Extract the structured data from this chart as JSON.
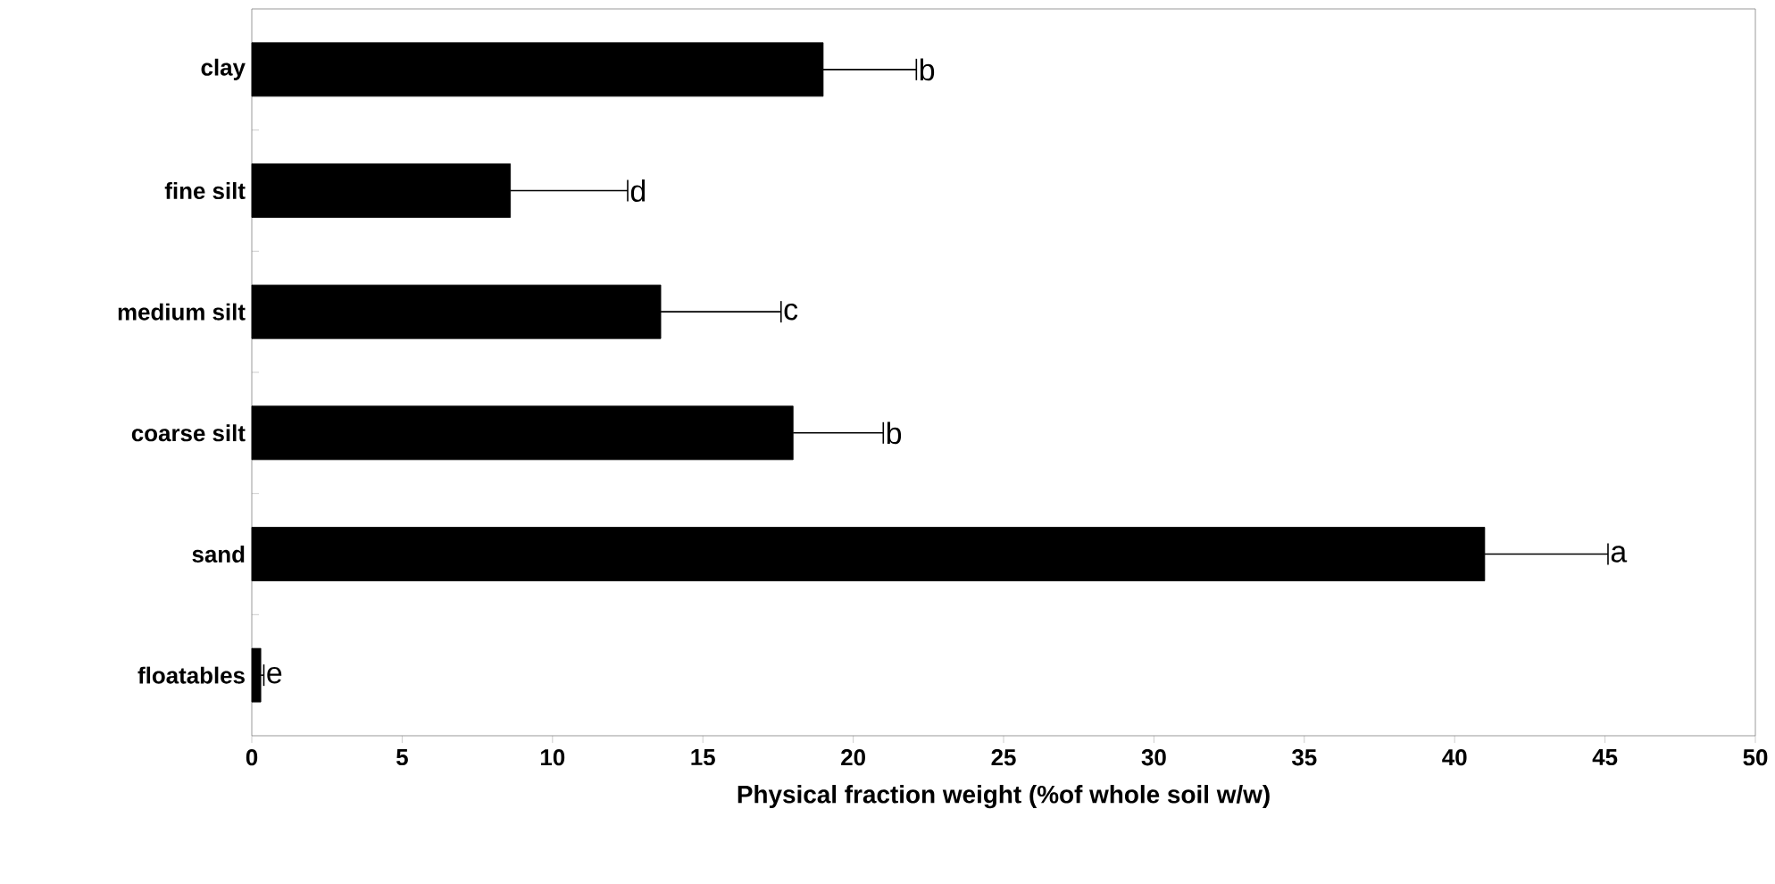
{
  "chart_data": {
    "type": "bar",
    "orientation": "horizontal",
    "xlabel": "Physical fraction weight (%of whole soil w/w)",
    "categories": [
      "clay",
      "fine silt",
      "medium silt",
      "coarse silt",
      "sand",
      "floatables"
    ],
    "values": [
      19.0,
      8.6,
      13.6,
      18.0,
      41.0,
      0.3
    ],
    "errors": [
      [
        19.0,
        22.1
      ],
      [
        8.6,
        12.5
      ],
      [
        13.6,
        17.6
      ],
      [
        18.0,
        21.0
      ],
      [
        41.0,
        45.1
      ],
      [
        0.3,
        0.4
      ]
    ],
    "color": "#000000",
    "xlim": [
      0,
      50
    ],
    "xticks": [
      0,
      5,
      10,
      15,
      20,
      25,
      30,
      35,
      40,
      45,
      50
    ],
    "annotations": [
      {
        "text": "b",
        "x": 22.1,
        "y": "clay"
      },
      {
        "text": "d",
        "x": 12.5,
        "y": "fine silt"
      },
      {
        "text": "c",
        "x": 17.6,
        "y": "medium silt"
      },
      {
        "text": "b",
        "x": 21.0,
        "y": "coarse silt"
      },
      {
        "text": "a",
        "x": 45.1,
        "y": "sand"
      },
      {
        "text": "e",
        "x": 0.4,
        "y": "floatables"
      }
    ]
  }
}
